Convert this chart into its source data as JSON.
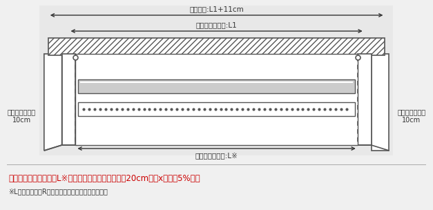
{
  "bg_color": "#f0f0f0",
  "diagram_bg": "#f0f0f0",
  "text_color": "#333333",
  "red_color": "#cc0000",
  "formula_text": "（レガートレール幅（L※）＋両端ランナー走行部（20cm））xゆるみ5%程度",
  "note_text": "※Lは上記メタルRキャップのレールサイズ表を参照",
  "label_toriketsuke": "取付け幅:L1+11cm",
  "label_elite": "エリートレール:L1",
  "label_runner_left": "ランナー走行部\n10cm",
  "label_runner_right": "ランナー走行部\n10cm",
  "label_legato": "レガートレール:L※"
}
